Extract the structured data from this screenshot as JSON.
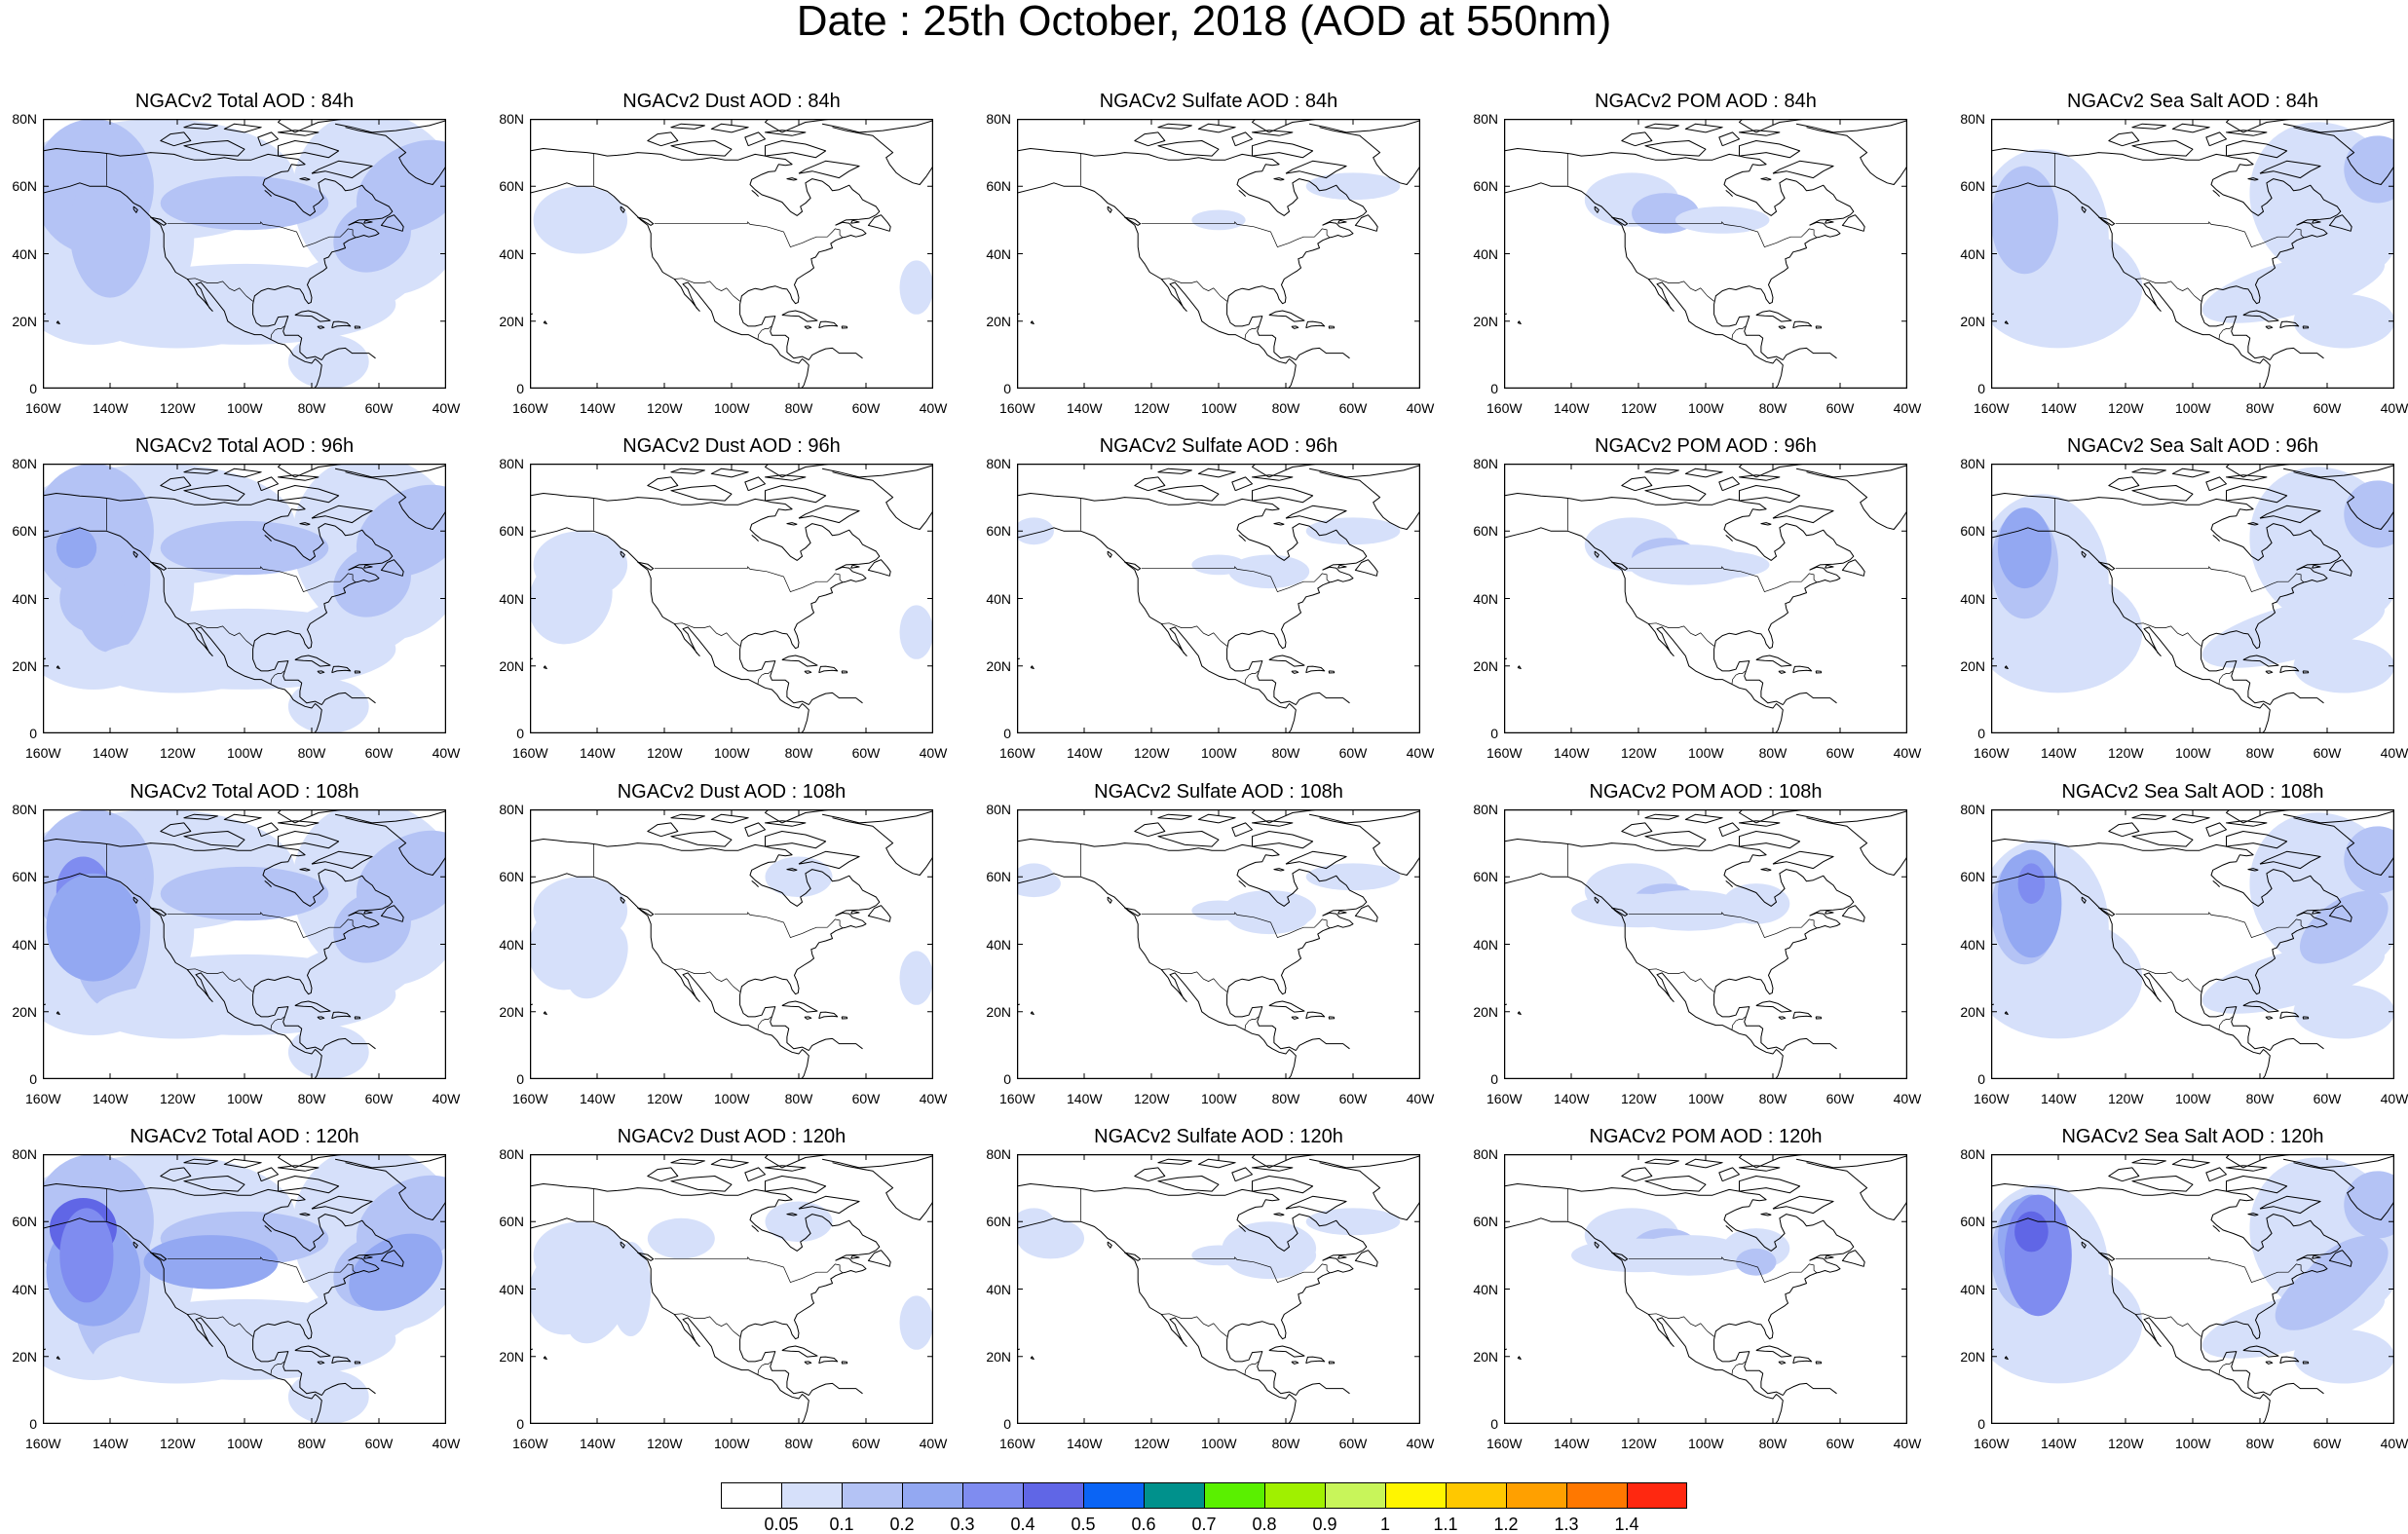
{
  "title": "Date : 25th October, 2018 (AOD at 550nm)",
  "panels": [
    [
      "NGACv2 Total AOD : 84h",
      "NGACv2 Dust AOD : 84h",
      "NGACv2 Sulfate AOD : 84h",
      "NGACv2 POM AOD : 84h",
      "NGACv2 Sea Salt AOD : 84h"
    ],
    [
      "NGACv2 Total AOD : 96h",
      "NGACv2 Dust AOD : 96h",
      "NGACv2 Sulfate AOD : 96h",
      "NGACv2 POM AOD : 96h",
      "NGACv2 Sea Salt AOD : 96h"
    ],
    [
      "NGACv2 Total AOD : 108h",
      "NGACv2 Dust AOD : 108h",
      "NGACv2 Sulfate AOD : 108h",
      "NGACv2 POM AOD : 108h",
      "NGACv2 Sea Salt AOD : 108h"
    ],
    [
      "NGACv2 Total AOD : 120h",
      "NGACv2 Dust AOD : 120h",
      "NGACv2 Sulfate AOD : 120h",
      "NGACv2 POM AOD : 120h",
      "NGACv2 Sea Salt  AOD : 120h"
    ]
  ],
  "panel_types": [
    "total",
    "dust",
    "sulfate",
    "pom",
    "seasalt"
  ],
  "forecast_hours": [
    "84h",
    "96h",
    "108h",
    "120h"
  ],
  "x_ticks": [
    "160W",
    "140W",
    "120W",
    "100W",
    "80W",
    "60W",
    "40W"
  ],
  "y_ticks": [
    "80N",
    "60N",
    "40N",
    "20N",
    "0"
  ],
  "colorbar": {
    "labels": [
      "0.05",
      "0.1",
      "0.2",
      "0.3",
      "0.4",
      "0.5",
      "0.6",
      "0.7",
      "0.8",
      "0.9",
      "1",
      "1.1",
      "1.2",
      "1.3",
      "1.4"
    ],
    "colors": [
      "#ffffff",
      "#d6e0fa",
      "#b4c3f5",
      "#93a8f2",
      "#7f8cf0",
      "#6066e6",
      "#0a64f5",
      "#00918c",
      "#5af000",
      "#a0f000",
      "#c8f55a",
      "#fff500",
      "#ffc800",
      "#ffa000",
      "#ff7800",
      "#ff2810"
    ]
  }
}
